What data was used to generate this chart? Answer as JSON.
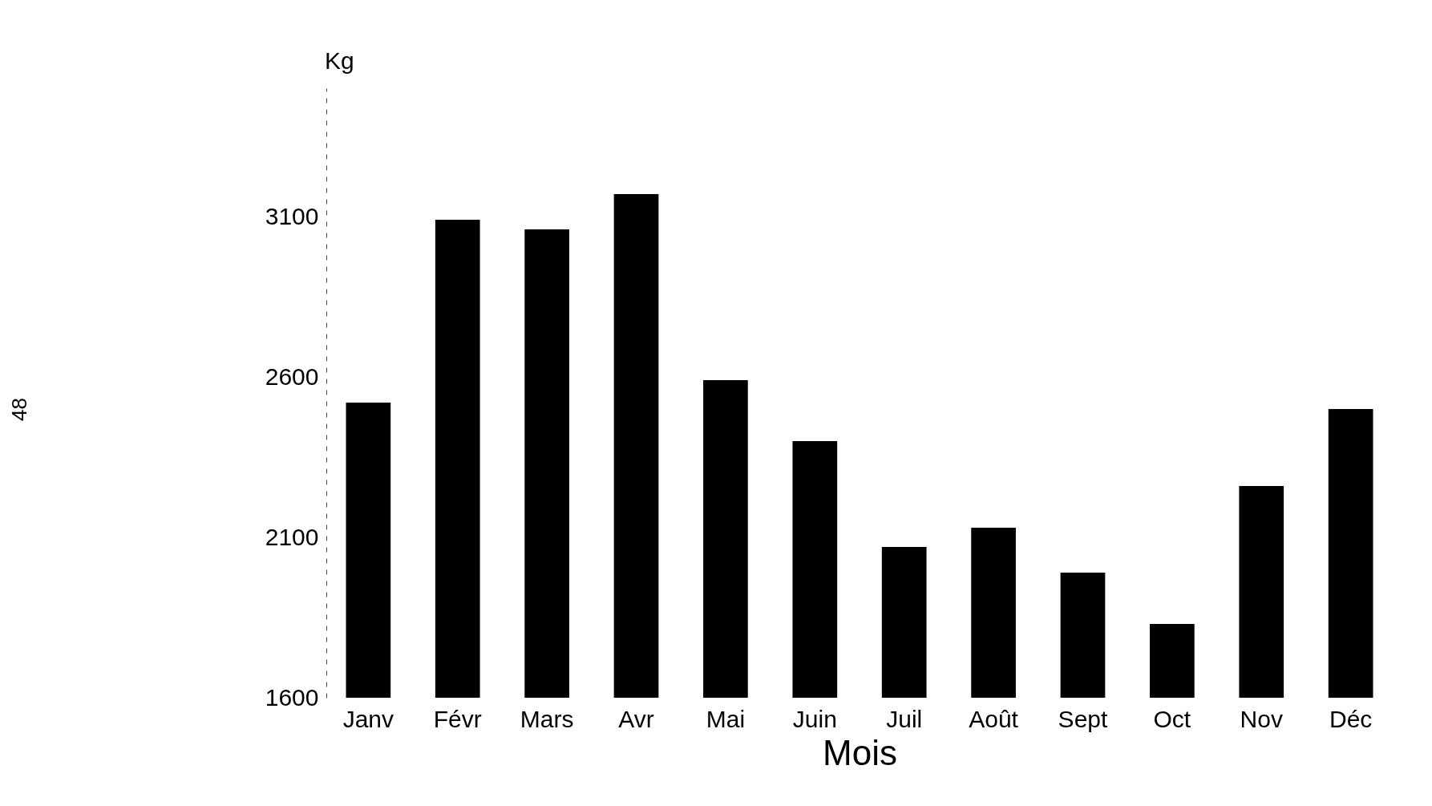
{
  "chart_data": {
    "type": "bar",
    "xlabel": "Mois",
    "ylabel": "Kg",
    "categories": [
      "Janv",
      "Févr",
      "Mars",
      "Avr",
      "Mai",
      "Juin",
      "Juil",
      "Août",
      "Sept",
      "Oct",
      "Nov",
      "Déc"
    ],
    "values": [
      2520,
      3090,
      3060,
      3170,
      2590,
      2400,
      2070,
      2130,
      1990,
      1830,
      2260,
      2500
    ],
    "color": "#000000",
    "ylim": [
      1600,
      3500
    ],
    "yticks": [
      1600,
      2100,
      2600,
      3100
    ],
    "grid": false,
    "annotations": [
      {
        "text": "48"
      }
    ]
  }
}
